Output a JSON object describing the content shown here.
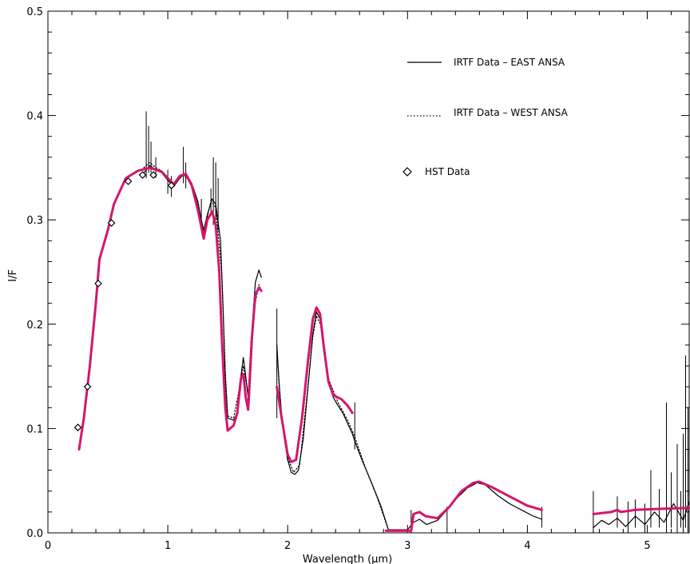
{
  "chart_data": {
    "type": "line",
    "xlabel": "Wavelength (μm)",
    "ylabel": "I/F",
    "xlim": [
      0,
      5.35
    ],
    "ylim": [
      0,
      0.5
    ],
    "x_ticks": [
      "0",
      "1",
      "2",
      "3",
      "4",
      "5"
    ],
    "y_ticks": [
      "0.0",
      "0.1",
      "0.2",
      "0.3",
      "0.4",
      "0.5"
    ],
    "legend_position": "top-right",
    "legend": [
      {
        "label": "IRTF Data – EAST ANSA",
        "style": "solid"
      },
      {
        "label": "IRTF Data – WEST ANSA",
        "style": "dotted"
      },
      {
        "label": "HST Data",
        "style": "diamond"
      }
    ],
    "colors": {
      "model": "#d6156c",
      "data": "#000000"
    },
    "series": [
      {
        "name": "IRTF Data – EAST ANSA",
        "style": "solid",
        "segments": [
          [
            [
              0.8,
              0.345
            ],
            [
              0.85,
              0.352
            ],
            [
              0.9,
              0.348
            ],
            [
              0.95,
              0.345
            ],
            [
              1.0,
              0.338
            ],
            [
              1.05,
              0.332
            ],
            [
              1.1,
              0.34
            ],
            [
              1.15,
              0.345
            ],
            [
              1.2,
              0.335
            ],
            [
              1.25,
              0.318
            ],
            [
              1.28,
              0.3
            ],
            [
              1.3,
              0.29
            ],
            [
              1.33,
              0.305
            ],
            [
              1.37,
              0.32
            ],
            [
              1.4,
              0.315
            ],
            [
              1.44,
              0.28
            ],
            [
              1.46,
              0.22
            ],
            [
              1.48,
              0.15
            ],
            [
              1.5,
              0.11
            ],
            [
              1.55,
              0.108
            ],
            [
              1.58,
              0.115
            ],
            [
              1.61,
              0.15
            ],
            [
              1.63,
              0.168
            ],
            [
              1.65,
              0.15
            ],
            [
              1.67,
              0.13
            ],
            [
              1.7,
              0.19
            ],
            [
              1.73,
              0.24
            ],
            [
              1.76,
              0.252
            ],
            [
              1.78,
              0.245
            ]
          ],
          [
            [
              1.91,
              0.18
            ],
            [
              1.93,
              0.14
            ],
            [
              1.96,
              0.1
            ],
            [
              2.0,
              0.07
            ],
            [
              2.03,
              0.058
            ],
            [
              2.06,
              0.056
            ],
            [
              2.09,
              0.06
            ],
            [
              2.13,
              0.09
            ],
            [
              2.17,
              0.14
            ],
            [
              2.21,
              0.19
            ],
            [
              2.24,
              0.212
            ],
            [
              2.27,
              0.205
            ],
            [
              2.3,
              0.175
            ],
            [
              2.34,
              0.145
            ],
            [
              2.38,
              0.13
            ],
            [
              2.42,
              0.122
            ],
            [
              2.46,
              0.115
            ],
            [
              2.5,
              0.105
            ],
            [
              2.54,
              0.095
            ],
            [
              2.56,
              0.088
            ],
            [
              2.62,
              0.07
            ],
            [
              2.7,
              0.048
            ],
            [
              2.78,
              0.025
            ],
            [
              2.84,
              0.003
            ],
            [
              3.0,
              0.003
            ],
            [
              3.05,
              0.01
            ],
            [
              3.1,
              0.013
            ],
            [
              3.16,
              0.008
            ],
            [
              3.25,
              0.012
            ],
            [
              3.33,
              0.022
            ],
            [
              3.4,
              0.032
            ],
            [
              3.5,
              0.043
            ],
            [
              3.58,
              0.048
            ],
            [
              3.65,
              0.046
            ],
            [
              3.75,
              0.036
            ],
            [
              3.85,
              0.028
            ],
            [
              3.95,
              0.022
            ],
            [
              4.05,
              0.016
            ],
            [
              4.12,
              0.013
            ]
          ],
          [
            [
              4.55,
              0.005
            ],
            [
              4.62,
              0.012
            ],
            [
              4.68,
              0.008
            ],
            [
              4.75,
              0.014
            ],
            [
              4.82,
              0.006
            ],
            [
              4.9,
              0.016
            ],
            [
              4.98,
              0.008
            ],
            [
              5.06,
              0.02
            ],
            [
              5.14,
              0.01
            ],
            [
              5.22,
              0.028
            ],
            [
              5.3,
              0.012
            ],
            [
              5.35,
              0.03
            ]
          ]
        ]
      },
      {
        "name": "IRTF Data – WEST ANSA",
        "style": "dotted",
        "segments": [
          [
            [
              0.8,
              0.35
            ],
            [
              0.85,
              0.355
            ],
            [
              0.9,
              0.35
            ],
            [
              0.95,
              0.347
            ],
            [
              1.0,
              0.34
            ],
            [
              1.05,
              0.335
            ],
            [
              1.1,
              0.342
            ],
            [
              1.15,
              0.342
            ],
            [
              1.2,
              0.332
            ],
            [
              1.25,
              0.315
            ],
            [
              1.3,
              0.288
            ],
            [
              1.36,
              0.318
            ],
            [
              1.4,
              0.312
            ],
            [
              1.45,
              0.25
            ],
            [
              1.48,
              0.155
            ],
            [
              1.5,
              0.112
            ],
            [
              1.55,
              0.11
            ],
            [
              1.6,
              0.14
            ],
            [
              1.63,
              0.16
            ],
            [
              1.66,
              0.14
            ],
            [
              1.68,
              0.125
            ],
            [
              1.72,
              0.215
            ],
            [
              1.76,
              0.238
            ],
            [
              1.78,
              0.232
            ]
          ],
          [
            [
              1.91,
              0.175
            ],
            [
              1.95,
              0.11
            ],
            [
              2.0,
              0.072
            ],
            [
              2.05,
              0.058
            ],
            [
              2.1,
              0.065
            ],
            [
              2.16,
              0.13
            ],
            [
              2.21,
              0.188
            ],
            [
              2.24,
              0.208
            ],
            [
              2.28,
              0.198
            ],
            [
              2.34,
              0.148
            ],
            [
              2.42,
              0.125
            ],
            [
              2.5,
              0.108
            ],
            [
              2.56,
              0.092
            ],
            [
              2.65,
              0.062
            ],
            [
              2.75,
              0.033
            ],
            [
              2.84,
              0.003
            ]
          ]
        ]
      },
      {
        "name": "Model",
        "style": "solid-thick",
        "segments": [
          [
            [
              0.26,
              0.08
            ],
            [
              0.3,
              0.11
            ],
            [
              0.35,
              0.16
            ],
            [
              0.4,
              0.22
            ],
            [
              0.43,
              0.262
            ],
            [
              0.5,
              0.29
            ],
            [
              0.55,
              0.315
            ],
            [
              0.65,
              0.34
            ],
            [
              0.75,
              0.347
            ],
            [
              0.85,
              0.35
            ],
            [
              0.95,
              0.346
            ],
            [
              1.05,
              0.334
            ],
            [
              1.1,
              0.342
            ],
            [
              1.15,
              0.344
            ],
            [
              1.2,
              0.333
            ],
            [
              1.25,
              0.31
            ],
            [
              1.3,
              0.282
            ],
            [
              1.33,
              0.3
            ],
            [
              1.37,
              0.308
            ],
            [
              1.4,
              0.295
            ],
            [
              1.43,
              0.25
            ],
            [
              1.45,
              0.19
            ],
            [
              1.48,
              0.12
            ],
            [
              1.5,
              0.098
            ],
            [
              1.55,
              0.103
            ],
            [
              1.58,
              0.115
            ],
            [
              1.61,
              0.148
            ],
            [
              1.63,
              0.152
            ],
            [
              1.65,
              0.13
            ],
            [
              1.67,
              0.118
            ],
            [
              1.7,
              0.185
            ],
            [
              1.73,
              0.228
            ],
            [
              1.76,
              0.235
            ],
            [
              1.78,
              0.232
            ]
          ],
          [
            [
              1.91,
              0.14
            ],
            [
              1.95,
              0.11
            ],
            [
              2.0,
              0.075
            ],
            [
              2.03,
              0.068
            ],
            [
              2.07,
              0.07
            ],
            [
              2.12,
              0.11
            ],
            [
              2.17,
              0.165
            ],
            [
              2.21,
              0.205
            ],
            [
              2.24,
              0.216
            ],
            [
              2.27,
              0.21
            ],
            [
              2.3,
              0.18
            ],
            [
              2.34,
              0.145
            ],
            [
              2.38,
              0.132
            ],
            [
              2.45,
              0.128
            ],
            [
              2.5,
              0.122
            ],
            [
              2.54,
              0.115
            ]
          ],
          [
            [
              2.82,
              0.002
            ],
            [
              3.03,
              0.002
            ],
            [
              3.05,
              0.018
            ],
            [
              3.1,
              0.02
            ],
            [
              3.15,
              0.016
            ],
            [
              3.25,
              0.014
            ],
            [
              3.35,
              0.025
            ],
            [
              3.45,
              0.04
            ],
            [
              3.55,
              0.048
            ],
            [
              3.6,
              0.049
            ],
            [
              3.7,
              0.044
            ],
            [
              3.85,
              0.035
            ],
            [
              4.0,
              0.026
            ],
            [
              4.12,
              0.022
            ]
          ],
          [
            [
              4.55,
              0.018
            ],
            [
              4.7,
              0.02
            ],
            [
              4.75,
              0.022
            ],
            [
              4.78,
              0.02
            ],
            [
              4.9,
              0.022
            ],
            [
              5.1,
              0.023
            ],
            [
              5.35,
              0.024
            ]
          ]
        ]
      }
    ],
    "spikes": [
      {
        "x": 0.82,
        "y0": 0.34,
        "y1": 0.404
      },
      {
        "x": 0.84,
        "y0": 0.345,
        "y1": 0.39
      },
      {
        "x": 0.86,
        "y0": 0.345,
        "y1": 0.375
      },
      {
        "x": 0.9,
        "y0": 0.34,
        "y1": 0.36
      },
      {
        "x": 1.0,
        "y0": 0.325,
        "y1": 0.348
      },
      {
        "x": 1.03,
        "y0": 0.322,
        "y1": 0.342
      },
      {
        "x": 1.13,
        "y0": 0.335,
        "y1": 0.37
      },
      {
        "x": 1.15,
        "y0": 0.33,
        "y1": 0.355
      },
      {
        "x": 1.28,
        "y0": 0.29,
        "y1": 0.32
      },
      {
        "x": 1.36,
        "y0": 0.305,
        "y1": 0.33
      },
      {
        "x": 1.38,
        "y0": 0.295,
        "y1": 0.36
      },
      {
        "x": 1.4,
        "y0": 0.3,
        "y1": 0.355
      },
      {
        "x": 1.42,
        "y0": 0.29,
        "y1": 0.34
      },
      {
        "x": 1.91,
        "y0": 0.11,
        "y1": 0.215
      },
      {
        "x": 2.56,
        "y0": 0.08,
        "y1": 0.125
      },
      {
        "x": 3.03,
        "y0": 0.0,
        "y1": 0.022
      },
      {
        "x": 3.33,
        "y0": 0.0,
        "y1": 0.025
      },
      {
        "x": 4.12,
        "y0": 0.005,
        "y1": 0.025
      },
      {
        "x": 4.55,
        "y0": 0.0,
        "y1": 0.04
      },
      {
        "x": 4.75,
        "y0": 0.005,
        "y1": 0.035
      },
      {
        "x": 4.84,
        "y0": 0.0,
        "y1": 0.03
      },
      {
        "x": 4.9,
        "y0": 0.005,
        "y1": 0.032
      },
      {
        "x": 4.98,
        "y0": 0.0,
        "y1": 0.028
      },
      {
        "x": 5.03,
        "y0": 0.005,
        "y1": 0.06
      },
      {
        "x": 5.1,
        "y0": 0.005,
        "y1": 0.042
      },
      {
        "x": 5.16,
        "y0": 0.0,
        "y1": 0.125
      },
      {
        "x": 5.2,
        "y0": 0.005,
        "y1": 0.058
      },
      {
        "x": 5.25,
        "y0": 0.0,
        "y1": 0.085
      },
      {
        "x": 5.28,
        "y0": 0.005,
        "y1": 0.04
      },
      {
        "x": 5.3,
        "y0": 0.0,
        "y1": 0.095
      },
      {
        "x": 5.32,
        "y0": 0.005,
        "y1": 0.17
      },
      {
        "x": 5.34,
        "y0": 0.0,
        "y1": 0.12
      }
    ],
    "hst_points": [
      {
        "x": 0.25,
        "y": 0.101
      },
      {
        "x": 0.33,
        "y": 0.14
      },
      {
        "x": 0.42,
        "y": 0.239
      },
      {
        "x": 0.53,
        "y": 0.297
      },
      {
        "x": 0.67,
        "y": 0.337
      },
      {
        "x": 0.79,
        "y": 0.343
      },
      {
        "x": 0.88,
        "y": 0.343
      },
      {
        "x": 1.03,
        "y": 0.333
      }
    ]
  }
}
